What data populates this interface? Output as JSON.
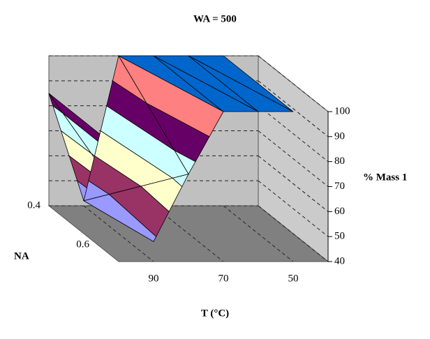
{
  "chart_data": {
    "type": "surface3d",
    "title": "WA = 500",
    "x_label": "T (°C)",
    "depth_label": "NA",
    "z_label": "% Mass 1",
    "categories": [
      null,
      "90",
      null,
      "70",
      null,
      "50"
    ],
    "series": [
      {
        "name": "0.4",
        "values": [
          85,
          42,
          100,
          100,
          100,
          100
        ]
      },
      {
        "name": "0.6",
        "values": [
          85,
          48,
          75,
          100,
          100,
          100
        ]
      }
    ],
    "ylim": [
      40,
      100
    ],
    "yticks": [
      40,
      50,
      60,
      70,
      80,
      90,
      100
    ],
    "band_colors": [
      "#9999ff",
      "#993366",
      "#ffffcc",
      "#ccffff",
      "#660066",
      "#ff8080",
      "#0066cc"
    ],
    "grid": true
  }
}
